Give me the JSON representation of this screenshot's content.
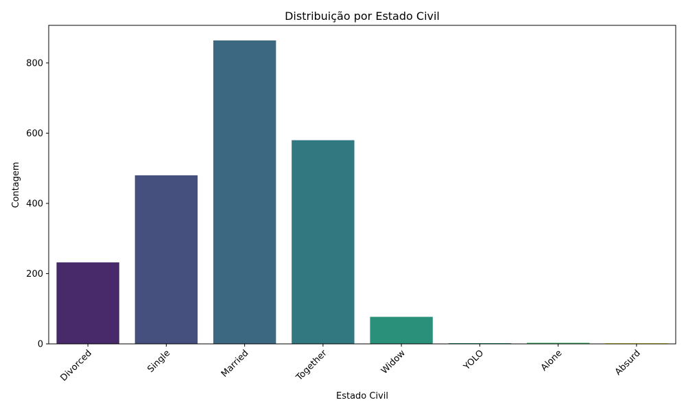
{
  "chart_data": {
    "type": "bar",
    "title": "Distribuição por Estado Civil",
    "xlabel": "Estado Civil",
    "ylabel": "Contagem",
    "categories": [
      "Divorced",
      "Single",
      "Married",
      "Together",
      "Widow",
      "YOLO",
      "Alone",
      "Absurd"
    ],
    "values": [
      232,
      480,
      864,
      580,
      77,
      2,
      3,
      2
    ],
    "colors": [
      "#482a6b",
      "#46507f",
      "#3d6881",
      "#327880",
      "#2a907a",
      "#2fa17b",
      "#3fb168",
      "#f0e021"
    ],
    "ylim": [
      0,
      907
    ],
    "yticks": [
      0,
      200,
      400,
      600,
      800
    ],
    "grid": false,
    "legend": "none"
  }
}
